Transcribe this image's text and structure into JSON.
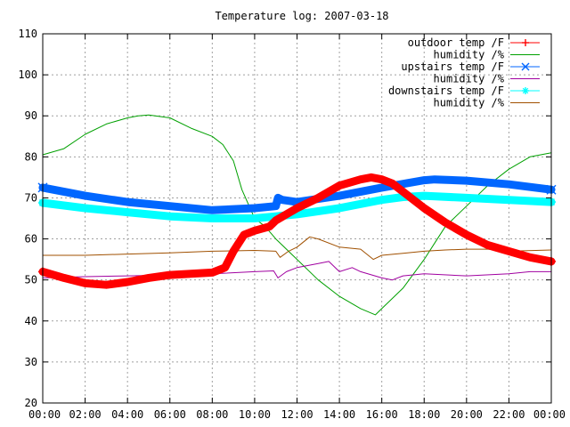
{
  "chart_data": {
    "type": "line",
    "title": "Temperature log: 2007-03-18",
    "xlabel": "",
    "ylabel": "",
    "x_tick_labels": [
      "00:00",
      "02:00",
      "04:00",
      "06:00",
      "08:00",
      "10:00",
      "12:00",
      "14:00",
      "16:00",
      "18:00",
      "20:00",
      "22:00",
      "00:00"
    ],
    "y_ticks": [
      20,
      30,
      40,
      50,
      60,
      70,
      80,
      90,
      100,
      110
    ],
    "xlim": [
      0,
      24
    ],
    "ylim": [
      20,
      110
    ],
    "x_unit": "hours",
    "grid": true,
    "legend_position": "top-right",
    "series": [
      {
        "name": "outdoor temp /F",
        "color": "#ff0000",
        "marker": "plus",
        "thick": true,
        "points": [
          [
            0,
            52
          ],
          [
            1,
            50.5
          ],
          [
            2,
            49.2
          ],
          [
            3,
            48.8
          ],
          [
            4,
            49.5
          ],
          [
            5,
            50.5
          ],
          [
            6,
            51.2
          ],
          [
            7,
            51.5
          ],
          [
            8,
            51.8
          ],
          [
            8.6,
            53
          ],
          [
            9,
            57
          ],
          [
            9.5,
            61
          ],
          [
            10,
            62
          ],
          [
            10.7,
            63
          ],
          [
            11,
            64.5
          ],
          [
            11.5,
            66
          ],
          [
            12,
            67.5
          ],
          [
            13,
            70
          ],
          [
            14,
            73
          ],
          [
            15,
            74.5
          ],
          [
            15.5,
            75
          ],
          [
            16,
            74.5
          ],
          [
            16.5,
            73.5
          ],
          [
            17,
            71.5
          ],
          [
            18,
            67.5
          ],
          [
            19,
            64
          ],
          [
            20,
            61
          ],
          [
            21,
            58.5
          ],
          [
            22,
            57
          ],
          [
            23,
            55.5
          ],
          [
            24,
            54.5
          ]
        ]
      },
      {
        "name": "humidity /%",
        "color": "#00a000",
        "marker": "none",
        "thick": false,
        "points": [
          [
            0,
            80.5
          ],
          [
            1,
            82
          ],
          [
            2,
            85.5
          ],
          [
            3,
            88
          ],
          [
            4,
            89.5
          ],
          [
            4.5,
            90
          ],
          [
            5,
            90.2
          ],
          [
            6,
            89.5
          ],
          [
            7,
            87
          ],
          [
            8,
            85
          ],
          [
            8.5,
            83
          ],
          [
            9,
            79
          ],
          [
            9.4,
            72
          ],
          [
            10,
            65
          ],
          [
            10.5,
            63
          ],
          [
            11,
            60
          ],
          [
            12,
            55
          ],
          [
            13,
            50
          ],
          [
            14,
            46
          ],
          [
            15,
            43
          ],
          [
            15.7,
            41.5
          ],
          [
            16,
            43
          ],
          [
            17,
            48
          ],
          [
            18,
            55
          ],
          [
            18.5,
            59
          ],
          [
            19,
            63
          ],
          [
            20,
            68
          ],
          [
            21,
            73
          ],
          [
            22,
            77
          ],
          [
            23,
            80
          ],
          [
            24,
            81
          ]
        ]
      },
      {
        "name": "upstairs temp /F",
        "color": "#0066ff",
        "marker": "cross",
        "thick": true,
        "points": [
          [
            0,
            72.5
          ],
          [
            2,
            70.5
          ],
          [
            4,
            69
          ],
          [
            6,
            68
          ],
          [
            8,
            67
          ],
          [
            10,
            67.5
          ],
          [
            11,
            68
          ],
          [
            11.1,
            70
          ],
          [
            11.3,
            69.5
          ],
          [
            12,
            69
          ],
          [
            14,
            70.5
          ],
          [
            16,
            72.5
          ],
          [
            18,
            74.3
          ],
          [
            18.5,
            74.5
          ],
          [
            20,
            74.2
          ],
          [
            22,
            73.3
          ],
          [
            24,
            72
          ]
        ]
      },
      {
        "name": "humidity /%",
        "color": "#a000a0",
        "marker": "none",
        "thick": false,
        "points": [
          [
            0,
            50.5
          ],
          [
            2,
            50.8
          ],
          [
            4,
            51
          ],
          [
            6,
            51.2
          ],
          [
            8,
            51.5
          ],
          [
            10,
            52
          ],
          [
            10.9,
            52.2
          ],
          [
            11.1,
            50.5
          ],
          [
            11.5,
            52
          ],
          [
            12,
            53
          ],
          [
            13,
            54
          ],
          [
            13.5,
            54.5
          ],
          [
            14,
            52
          ],
          [
            14.6,
            53
          ],
          [
            15,
            52
          ],
          [
            16,
            50.5
          ],
          [
            16.5,
            50
          ],
          [
            17,
            51
          ],
          [
            18,
            51.5
          ],
          [
            20,
            51
          ],
          [
            22,
            51.5
          ],
          [
            23,
            52
          ],
          [
            24,
            52
          ]
        ]
      },
      {
        "name": "downstairs temp /F",
        "color": "#00ffff",
        "marker": "star",
        "thick": true,
        "points": [
          [
            0,
            68.8
          ],
          [
            2,
            67.5
          ],
          [
            4,
            66.5
          ],
          [
            6,
            65.5
          ],
          [
            8,
            65
          ],
          [
            10,
            65
          ],
          [
            11,
            65.5
          ],
          [
            12,
            66
          ],
          [
            14,
            67.5
          ],
          [
            16,
            69.5
          ],
          [
            17,
            70.2
          ],
          [
            18,
            70.5
          ],
          [
            20,
            70
          ],
          [
            22,
            69.5
          ],
          [
            24,
            69
          ]
        ]
      },
      {
        "name": "humidity /%",
        "color": "#a05000",
        "marker": "none",
        "thick": false,
        "points": [
          [
            0,
            56
          ],
          [
            2,
            56
          ],
          [
            4,
            56.3
          ],
          [
            6,
            56.6
          ],
          [
            8,
            57
          ],
          [
            10,
            57.2
          ],
          [
            11,
            57
          ],
          [
            11.2,
            55.5
          ],
          [
            11.6,
            57
          ],
          [
            12,
            58
          ],
          [
            12.6,
            60.5
          ],
          [
            13,
            60
          ],
          [
            14,
            58
          ],
          [
            15,
            57.5
          ],
          [
            15.6,
            55
          ],
          [
            16,
            56
          ],
          [
            17,
            56.5
          ],
          [
            18,
            57
          ],
          [
            19,
            57.3
          ],
          [
            20,
            57.5
          ],
          [
            21,
            57.5
          ],
          [
            22,
            57
          ],
          [
            24,
            57.3
          ]
        ]
      }
    ]
  }
}
